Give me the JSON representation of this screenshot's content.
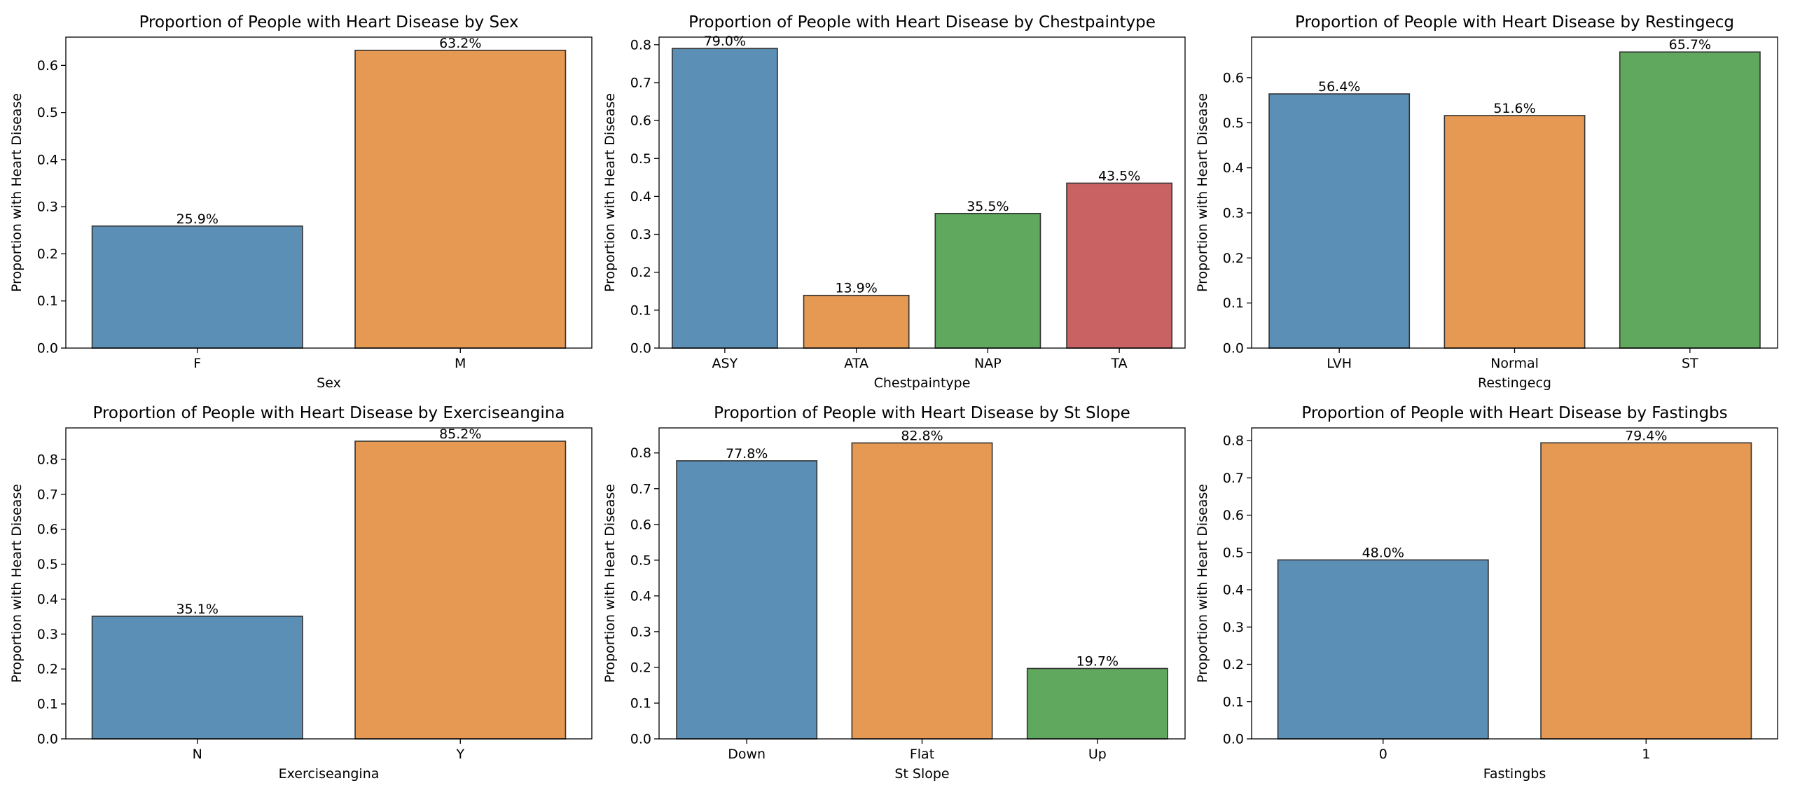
{
  "figure": {
    "background": "#ffffff"
  },
  "palette": [
    "#5b8fb5",
    "#e59952",
    "#5fa85d",
    "#c96262"
  ],
  "chart_data": [
    {
      "type": "bar",
      "title": "Proportion of People with Heart Disease by Sex",
      "xlabel": "Sex",
      "ylabel": "Proportion with Heart Disease",
      "categories": [
        "F",
        "M"
      ],
      "values": [
        0.259,
        0.632
      ],
      "data_labels": [
        "25.9%",
        "63.2%"
      ],
      "ylim": [
        0,
        0.66
      ],
      "yticks": [
        0.0,
        0.1,
        0.2,
        0.3,
        0.4,
        0.5,
        0.6
      ],
      "ytick_labels": [
        "0.0",
        "0.1",
        "0.2",
        "0.3",
        "0.4",
        "0.5",
        "0.6"
      ],
      "grid": false
    },
    {
      "type": "bar",
      "title": "Proportion of People with Heart Disease by Chestpaintype",
      "xlabel": "Chestpaintype",
      "ylabel": "Proportion with Heart Disease",
      "categories": [
        "ASY",
        "ATA",
        "NAP",
        "TA"
      ],
      "values": [
        0.79,
        0.139,
        0.355,
        0.435
      ],
      "data_labels": [
        "79.0%",
        "13.9%",
        "35.5%",
        "43.5%"
      ],
      "ylim": [
        0,
        0.82
      ],
      "yticks": [
        0.0,
        0.1,
        0.2,
        0.3,
        0.4,
        0.5,
        0.6,
        0.7,
        0.8
      ],
      "ytick_labels": [
        "0.0",
        "0.1",
        "0.2",
        "0.3",
        "0.4",
        "0.5",
        "0.6",
        "0.7",
        "0.8"
      ],
      "grid": false
    },
    {
      "type": "bar",
      "title": "Proportion of People with Heart Disease by Restingecg",
      "xlabel": "Restingecg",
      "ylabel": "Proportion with Heart Disease",
      "categories": [
        "LVH",
        "Normal",
        "ST"
      ],
      "values": [
        0.564,
        0.516,
        0.657
      ],
      "data_labels": [
        "56.4%",
        "51.6%",
        "65.7%"
      ],
      "ylim": [
        0,
        0.69
      ],
      "yticks": [
        0.0,
        0.1,
        0.2,
        0.3,
        0.4,
        0.5,
        0.6
      ],
      "ytick_labels": [
        "0.0",
        "0.1",
        "0.2",
        "0.3",
        "0.4",
        "0.5",
        "0.6"
      ],
      "grid": false
    },
    {
      "type": "bar",
      "title": "Proportion of People with Heart Disease by Exerciseangina",
      "xlabel": "Exerciseangina",
      "ylabel": "Proportion with Heart Disease",
      "categories": [
        "N",
        "Y"
      ],
      "values": [
        0.351,
        0.852
      ],
      "data_labels": [
        "35.1%",
        "85.2%"
      ],
      "ylim": [
        0,
        0.89
      ],
      "yticks": [
        0.0,
        0.1,
        0.2,
        0.3,
        0.4,
        0.5,
        0.6,
        0.7,
        0.8
      ],
      "ytick_labels": [
        "0.0",
        "0.1",
        "0.2",
        "0.3",
        "0.4",
        "0.5",
        "0.6",
        "0.7",
        "0.8"
      ],
      "grid": false
    },
    {
      "type": "bar",
      "title": "Proportion of People with Heart Disease by St Slope",
      "xlabel": "St Slope",
      "ylabel": "Proportion with Heart Disease",
      "categories": [
        "Down",
        "Flat",
        "Up"
      ],
      "values": [
        0.778,
        0.828,
        0.197
      ],
      "data_labels": [
        "77.8%",
        "82.8%",
        "19.7%"
      ],
      "ylim": [
        0,
        0.87
      ],
      "yticks": [
        0.0,
        0.1,
        0.2,
        0.3,
        0.4,
        0.5,
        0.6,
        0.7,
        0.8
      ],
      "ytick_labels": [
        "0.0",
        "0.1",
        "0.2",
        "0.3",
        "0.4",
        "0.5",
        "0.6",
        "0.7",
        "0.8"
      ],
      "grid": false
    },
    {
      "type": "bar",
      "title": "Proportion of People with Heart Disease by Fastingbs",
      "xlabel": "Fastingbs",
      "ylabel": "Proportion with Heart Disease",
      "categories": [
        "0",
        "1"
      ],
      "values": [
        0.48,
        0.794
      ],
      "data_labels": [
        "48.0%",
        "79.4%"
      ],
      "ylim": [
        0,
        0.834
      ],
      "yticks": [
        0.0,
        0.1,
        0.2,
        0.3,
        0.4,
        0.5,
        0.6,
        0.7,
        0.8
      ],
      "ytick_labels": [
        "0.0",
        "0.1",
        "0.2",
        "0.3",
        "0.4",
        "0.5",
        "0.6",
        "0.7",
        "0.8"
      ],
      "grid": false
    }
  ]
}
